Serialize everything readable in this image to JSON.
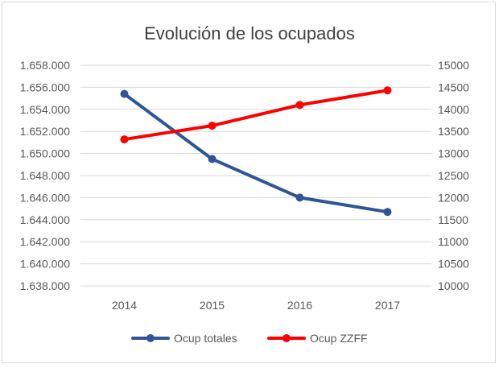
{
  "chart_data": {
    "type": "line",
    "title": "Evolución de los ocupados",
    "categories": [
      "2014",
      "2015",
      "2016",
      "2017"
    ],
    "series": [
      {
        "name": "Ocup totales",
        "axis": "left",
        "color": "#2f5597",
        "values": [
          1655400,
          1649500,
          1646000,
          1644700
        ]
      },
      {
        "name": "Ocup ZZFF",
        "axis": "right",
        "color": "#ff0000",
        "values": [
          13320,
          13630,
          14100,
          14430
        ]
      }
    ],
    "y_left": {
      "ylim": [
        1638000,
        1658000
      ],
      "ticks": [
        "1.638.000",
        "1.640.000",
        "1.642.000",
        "1.644.000",
        "1.646.000",
        "1.648.000",
        "1.650.000",
        "1.652.000",
        "1.654.000",
        "1.656.000",
        "1.658.000"
      ]
    },
    "y_right": {
      "ylim": [
        10000,
        15000
      ],
      "ticks": [
        "10000",
        "10500",
        "11000",
        "11500",
        "12000",
        "12500",
        "13000",
        "13500",
        "14000",
        "14500",
        "15000"
      ]
    },
    "grid": true,
    "legend": "bottom"
  }
}
